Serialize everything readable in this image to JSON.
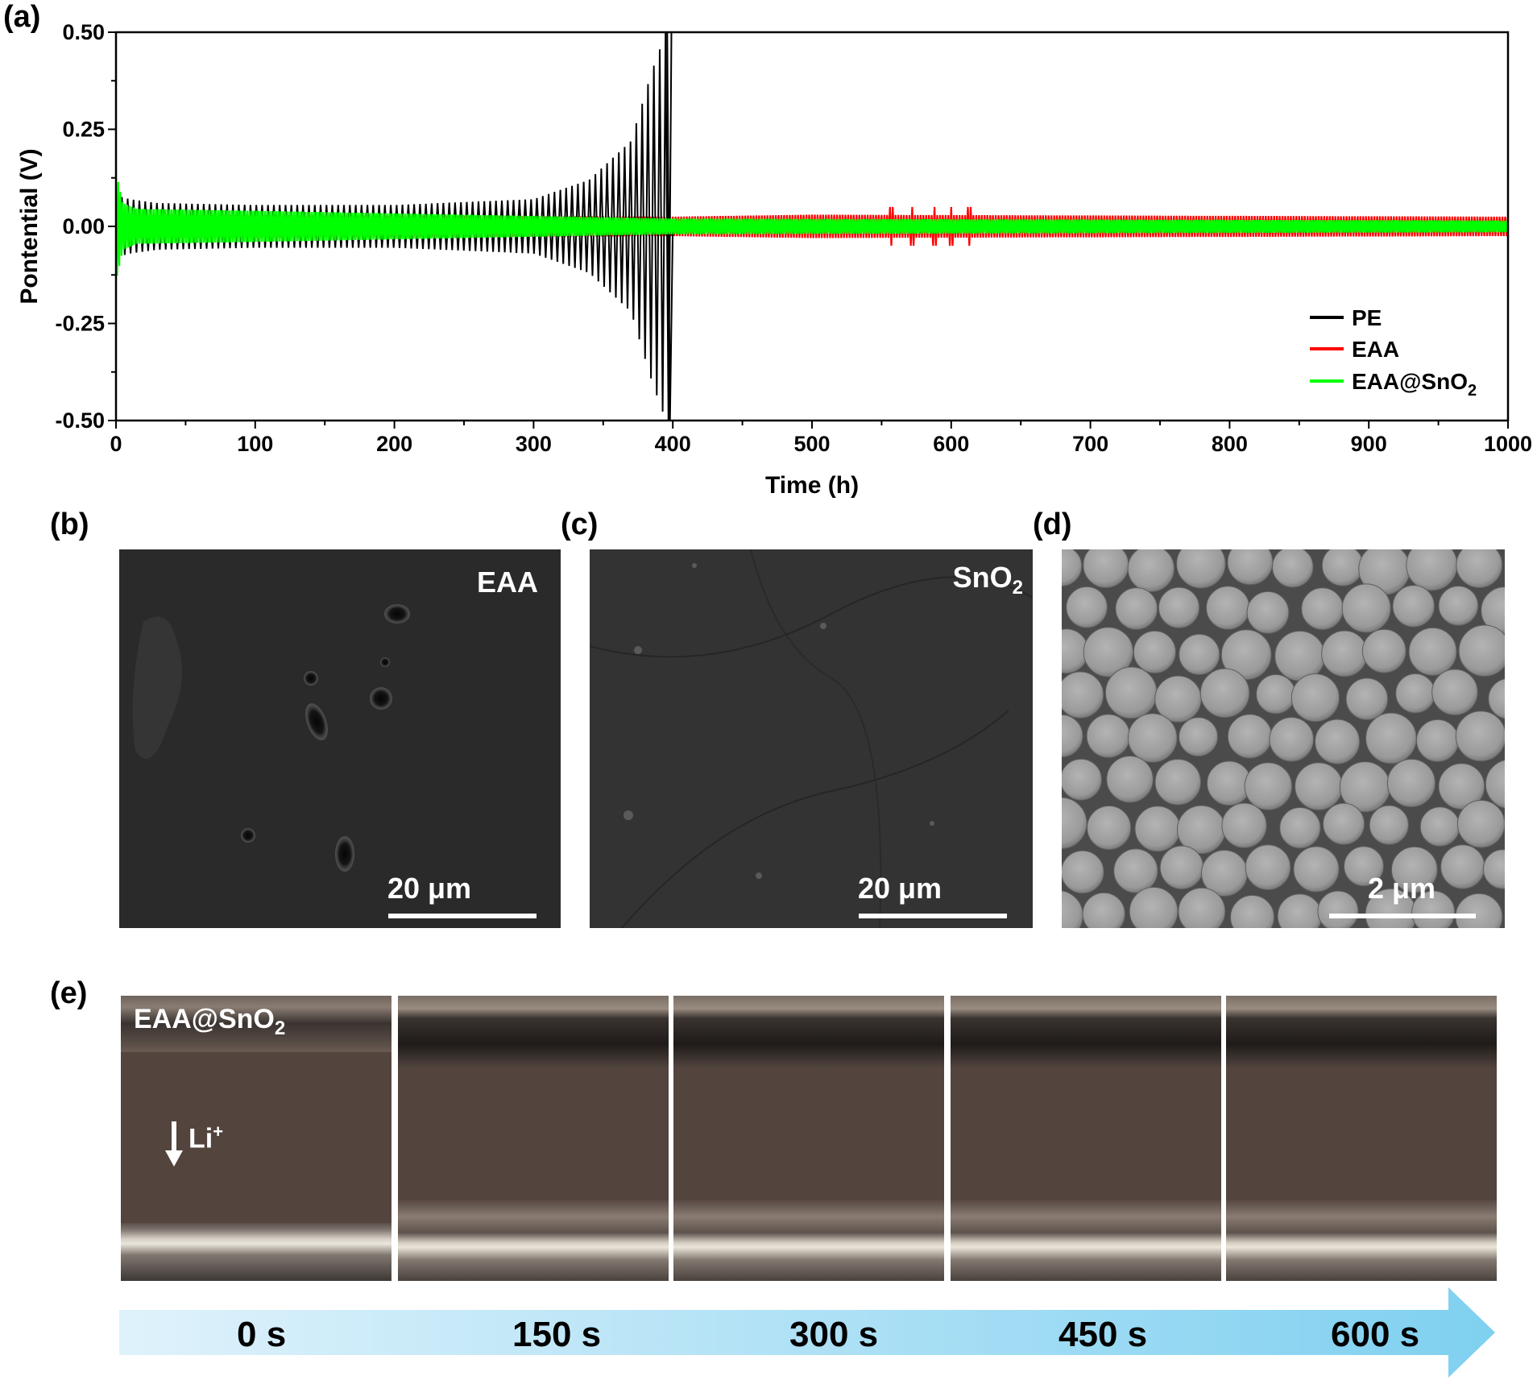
{
  "panels": {
    "a": "(a)",
    "b": "(b)",
    "c": "(c)",
    "d": "(d)",
    "e": "(e)"
  },
  "chart_data": {
    "type": "line",
    "xlabel": "Time (h)",
    "ylabel": "Pontential (V)",
    "xlim": [
      0,
      1000
    ],
    "ylim": [
      -0.5,
      0.5
    ],
    "x_ticks": [
      0,
      100,
      200,
      300,
      400,
      500,
      600,
      700,
      800,
      900,
      1000
    ],
    "y_ticks": [
      0.5,
      0.25,
      0.0,
      -0.25,
      -0.5
    ],
    "y_tick_labels": [
      "0.50",
      "0.25",
      "0.00",
      "-0.25",
      "-0.50"
    ],
    "legend_position": "bottom-right",
    "series": [
      {
        "name": "PE",
        "color": "#000000",
        "envelope": {
          "x": [
            0,
            10,
            30,
            100,
            200,
            300,
            340,
            370,
            385,
            395,
            400
          ],
          "amplitude": [
            0.08,
            0.07,
            0.06,
            0.055,
            0.055,
            0.07,
            0.12,
            0.22,
            0.4,
            0.5,
            0.5
          ]
        },
        "x_end": 400
      },
      {
        "name": "EAA",
        "color": "#ff0000",
        "envelope": {
          "x": [
            0,
            400,
            500,
            1000
          ],
          "amplitude": [
            0.03,
            0.025,
            0.03,
            0.025
          ]
        },
        "spikes": [
          557,
          572,
          588,
          600,
          613
        ],
        "x_end": 1000
      },
      {
        "name": "EAA@SnO",
        "name_sub": "2",
        "color": "#00ff00",
        "envelope": {
          "x": [
            0,
            5,
            15,
            100,
            400,
            1000
          ],
          "amplitude": [
            0.14,
            0.06,
            0.045,
            0.04,
            0.02,
            0.015
          ]
        },
        "x_end": 1000
      }
    ]
  },
  "sem": {
    "b": {
      "label": "EAA",
      "scale": "20 μm"
    },
    "c": {
      "label": "SnO",
      "label_sub": "2",
      "scale": "20 μm"
    },
    "d": {
      "scale": "2 μm"
    }
  },
  "optical": {
    "label": "EAA@SnO",
    "label_sub": "2",
    "ion": "Li",
    "ion_sup": "+",
    "times": [
      "0 s",
      "150 s",
      "300 s",
      "450 s",
      "600 s"
    ]
  }
}
